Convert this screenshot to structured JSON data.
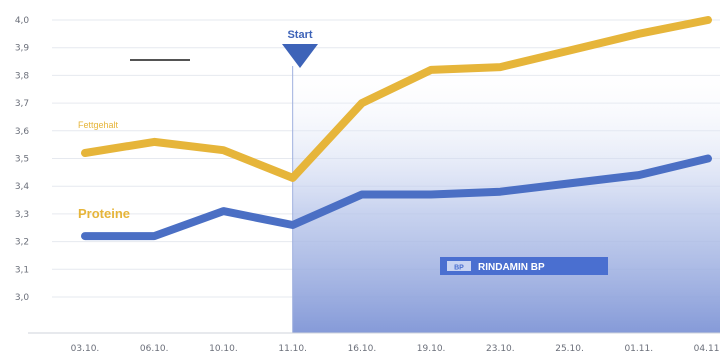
{
  "chart_data": {
    "type": "line",
    "categories": [
      "03.10.",
      "06.10.",
      "10.10.",
      "11.10.",
      "16.10.",
      "19.10.",
      "23.10.",
      "25.10.",
      "01.11.",
      "04.11."
    ],
    "y_ticks": [
      "4,0",
      "3,9",
      "3,8",
      "3,7",
      "3,6",
      "3,5",
      "3,4",
      "3,3",
      "3,2",
      "3,1",
      "3,0"
    ],
    "ylim": [
      2.9,
      4.0
    ],
    "series": [
      {
        "name": "Fett",
        "label": "Fettgehalt",
        "color": "#e6b53a",
        "values": [
          3.52,
          3.56,
          3.53,
          3.43,
          3.7,
          3.82,
          3.83,
          3.89,
          3.95,
          4.0
        ]
      },
      {
        "name": "Proteine",
        "label": "Proteine",
        "color": "#4b6fc4",
        "values": [
          3.22,
          3.22,
          3.31,
          3.26,
          3.37,
          3.37,
          3.38,
          3.41,
          3.44,
          3.5
        ]
      }
    ],
    "marker": {
      "label": "Start",
      "category": "11.10.",
      "color": "#3d63b8"
    },
    "shaded_region": {
      "from_category": "11.10.",
      "to_category": "04.11."
    },
    "product_label": {
      "badge": "BP",
      "text": "RINDAMIN BP"
    },
    "grid": true
  }
}
